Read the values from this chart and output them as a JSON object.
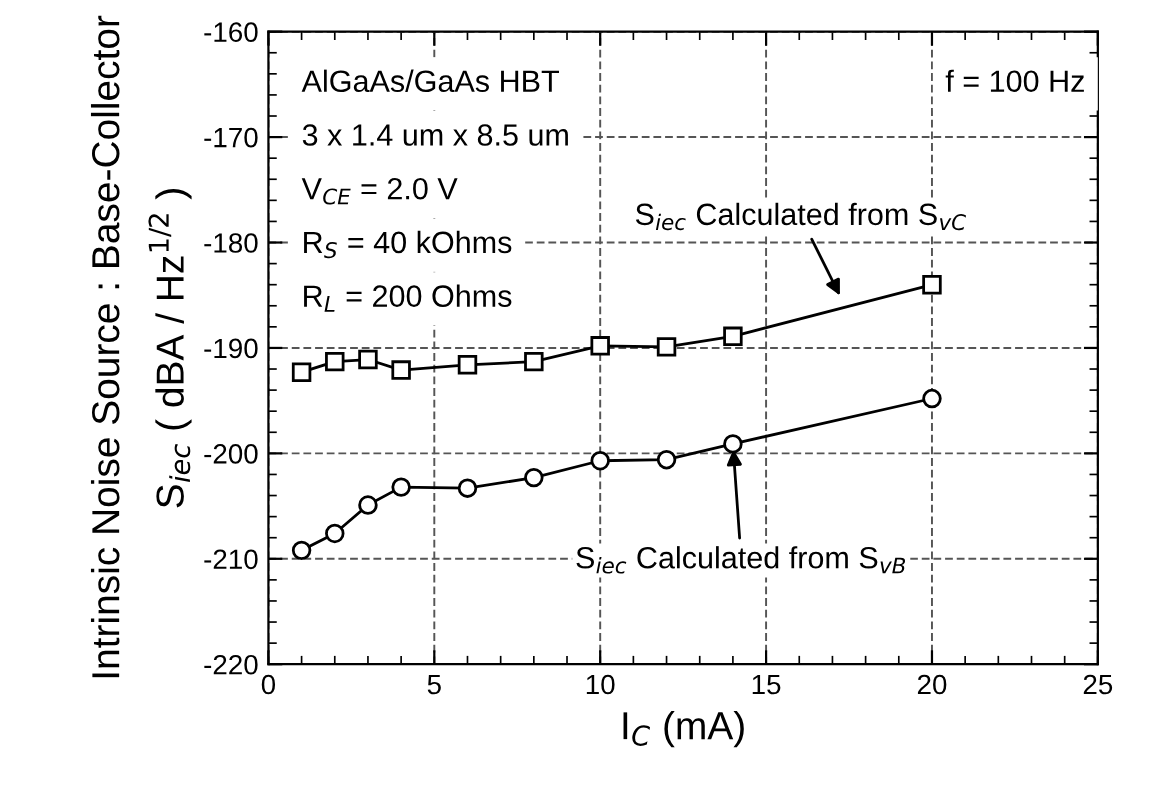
{
  "chart_data": {
    "type": "line",
    "xlabel": "I$_{C}$ (mA)",
    "ylabel": "Intrinsic Noise Source : Base-Collector\nS$_{iec}$ ( dBA / Hz$^{1/2}$ )",
    "x": [
      1,
      2,
      3,
      4,
      6,
      8,
      10,
      12,
      14,
      20
    ],
    "series": [
      {
        "color": "#000000",
        "marker": "square",
        "values": [
          -192.3,
          -191.3,
          -191.1,
          -192.1,
          -191.6,
          -191.3,
          -189.8,
          -189.9,
          -188.9,
          -184.0
        ]
      },
      {
        "color": "#000000",
        "marker": "circle",
        "values": [
          -209.2,
          -207.6,
          -204.9,
          -203.2,
          -203.3,
          -202.3,
          -200.7,
          -200.6,
          -199.1,
          -194.8
        ]
      }
    ],
    "xlim": [
      0,
      25
    ],
    "xticks": [
      0,
      5,
      10,
      15,
      20,
      25
    ],
    "ylim": [
      -220,
      -160
    ],
    "yticks": [
      -220,
      -210,
      -200,
      -190,
      -180,
      -170,
      -160
    ],
    "grid": true,
    "line_style": "solid",
    "annotations": [
      "AlGaAs/GaAs HBT",
      "3 x 1.4 um x 8.5 um",
      "V$_{CE}$ = 2.0 V",
      "R$_{S}$ = 40 kOhms",
      "R$_{L}$ = 200 Ohms",
      "f = 100 Hz",
      {
        "text": "S$_{iec}$ Calculated from S$_{vC}$",
        "x": 17.3,
        "y": -185.5
      },
      {
        "text": "S$_{iec}$ Calculated from S$_{vB}$",
        "x": 14,
        "y": -199.1
      }
    ]
  }
}
